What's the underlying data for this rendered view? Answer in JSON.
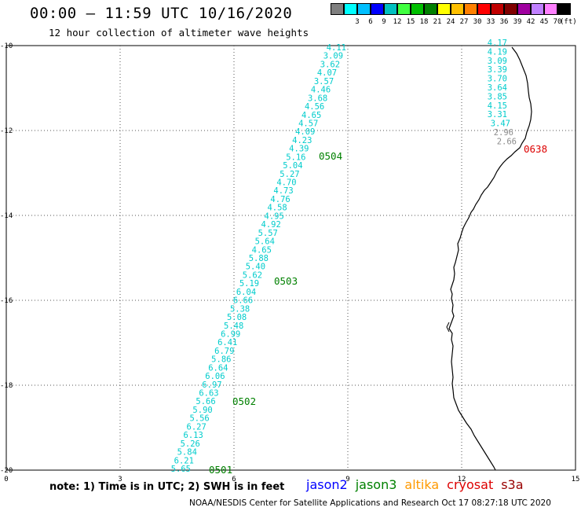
{
  "title": "00:00 – 11:59 UTC 10/16/2020",
  "subtitle": "12 hour collection of altimeter wave heights",
  "colorbar": {
    "unit": "(ft)",
    "bins": [
      {
        "label": "",
        "color": "#7f7f7f"
      },
      {
        "label": "3",
        "color": "#00ffff"
      },
      {
        "label": "6",
        "color": "#00bfff"
      },
      {
        "label": "9",
        "color": "#0000ff"
      },
      {
        "label": "12",
        "color": "#00c0c0"
      },
      {
        "label": "15",
        "color": "#40ff40"
      },
      {
        "label": "18",
        "color": "#00c000"
      },
      {
        "label": "21",
        "color": "#008000"
      },
      {
        "label": "24",
        "color": "#ffff00"
      },
      {
        "label": "27",
        "color": "#ffc000"
      },
      {
        "label": "30",
        "color": "#ff8000"
      },
      {
        "label": "33",
        "color": "#ff0000"
      },
      {
        "label": "36",
        "color": "#c00000"
      },
      {
        "label": "39",
        "color": "#800000"
      },
      {
        "label": "42",
        "color": "#a000a0"
      },
      {
        "label": "45",
        "color": "#c080ff"
      },
      {
        "label": "70",
        "color": "#ff80ff"
      },
      {
        "label": "",
        "color": "#000000"
      }
    ]
  },
  "axes": {
    "x_ticks": [
      "0",
      "3",
      "6",
      "9",
      "12",
      "15"
    ],
    "y_ticks": [
      "-10",
      "-12",
      "-14",
      "-16",
      "-18",
      "-20"
    ]
  },
  "colors": {
    "track": "#00cccc",
    "gray": "#8c8c8c",
    "jason3": "#008000",
    "cryosat": "#dd0000"
  },
  "passes": [
    {
      "id": "0501",
      "color": "#008000"
    },
    {
      "id": "0502",
      "color": "#008000"
    },
    {
      "id": "0503",
      "color": "#008000"
    },
    {
      "id": "0504",
      "color": "#008000"
    },
    {
      "id": "0638",
      "color": "#dd0000"
    }
  ],
  "track1": [
    "4.11",
    "3.09",
    "3.62",
    "4.07",
    "3.57",
    "4.46",
    "3.68",
    "4.56",
    "4.65",
    "4.57",
    "4.09",
    "4.23",
    "4.39",
    "5.16",
    "5.04",
    "5.27",
    "4.70",
    "4.73",
    "4.76",
    "4.58",
    "4.95",
    "4.92",
    "5.57",
    "5.64",
    "4.65",
    "5.88",
    "5.40",
    "5.62",
    "5.19",
    "6.04",
    "6.66",
    "5.38",
    "5.08",
    "5.48",
    "6.99",
    "6.41",
    "6.79",
    "5.86",
    "6.64",
    "6.06",
    "6.97",
    "6.63",
    "5.66",
    "5.90",
    "5.56",
    "6.27",
    "6.13",
    "5.26",
    "5.84",
    "6.21",
    "5.65"
  ],
  "track2": [
    "4.17",
    "4.19",
    "3.09",
    "3.39",
    "3.70",
    "3.64",
    "3.85",
    "4.15",
    "3.31",
    "3.47",
    "2.96",
    "2.66"
  ],
  "footer": {
    "note": "note:  1)  Time is in UTC;  2)  SWH is in feet",
    "satellites": [
      {
        "name": "jason2",
        "color": "#0000ff"
      },
      {
        "name": "jason3",
        "color": "#008000"
      },
      {
        "name": "altika",
        "color": "#ff9900"
      },
      {
        "name": "cryosat",
        "color": "#dd0000"
      },
      {
        "name": "s3a",
        "color": "#990000"
      }
    ],
    "credit": "NOAA/NESDIS Center for Satellite Applications and Research     Oct 17 08:27:18 UTC 2020"
  }
}
